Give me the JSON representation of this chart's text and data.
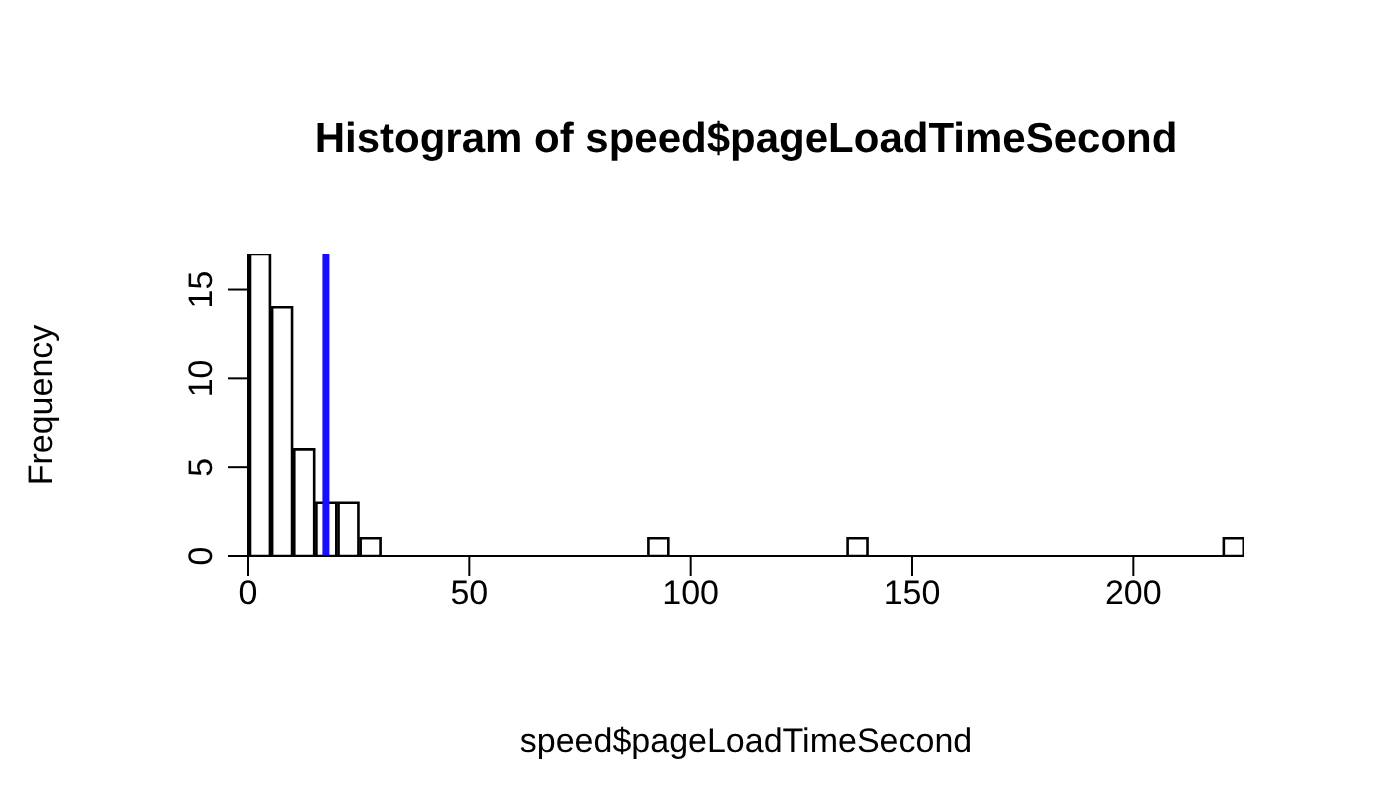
{
  "chart_data": {
    "type": "histogram",
    "title": "Histogram of speed$pageLoadTimeSecond",
    "xlabel": "speed$pageLoadTimeSecond",
    "ylabel": "Frequency",
    "bins": [
      0,
      5,
      10,
      15,
      20,
      25,
      30,
      35,
      40,
      45,
      50,
      55,
      60,
      65,
      70,
      75,
      80,
      85,
      90,
      95,
      100,
      105,
      110,
      115,
      120,
      125,
      130,
      135,
      140,
      145,
      150,
      155,
      160,
      165,
      170,
      175,
      180,
      185,
      190,
      195,
      200,
      205,
      210,
      215,
      220,
      225
    ],
    "values": [
      17,
      14,
      6,
      3,
      3,
      1,
      0,
      0,
      0,
      0,
      0,
      0,
      0,
      0,
      0,
      0,
      0,
      0,
      1,
      0,
      0,
      0,
      0,
      0,
      0,
      0,
      0,
      1,
      0,
      0,
      0,
      0,
      0,
      0,
      0,
      0,
      0,
      0,
      0,
      0,
      0,
      0,
      0,
      0,
      1
    ],
    "color": "#ffffff",
    "xlim": [
      0,
      225
    ],
    "xticks": [
      0,
      50,
      100,
      150,
      200
    ],
    "ylim": [
      0,
      17
    ],
    "yticks": [
      0,
      5,
      10,
      15
    ],
    "ref_lines": [
      {
        "axis": "x",
        "value": 17.6,
        "color": "#1a0dff"
      }
    ]
  }
}
